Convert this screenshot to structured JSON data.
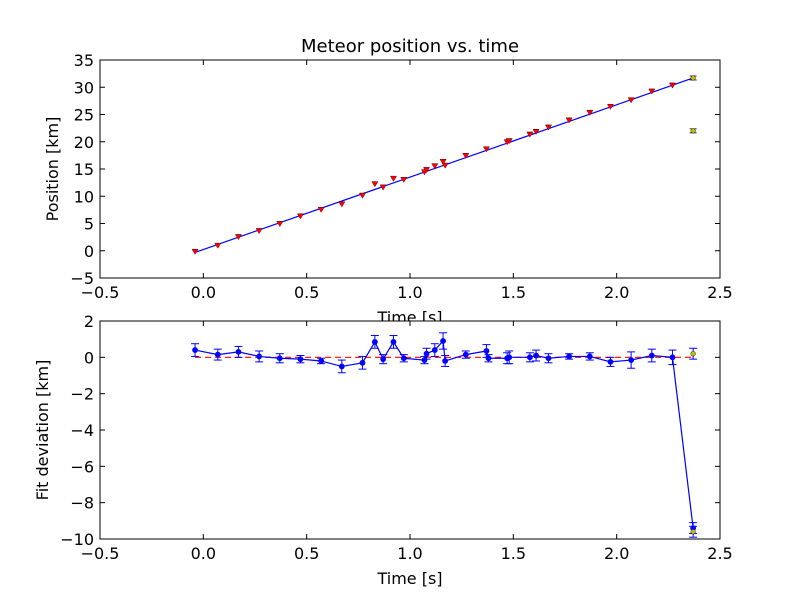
{
  "chart_data": [
    {
      "type": "scatter",
      "title": "Meteor position vs. time",
      "xlabel": "Time [s]",
      "ylabel": "Position [km]",
      "xlim": [
        -0.5,
        2.5
      ],
      "ylim": [
        -5,
        35
      ],
      "xticks": [
        "−0.5",
        "0.0",
        "0.5",
        "1.0",
        "1.5",
        "2.0",
        "2.5"
      ],
      "yticks": [
        "−5",
        "0",
        "5",
        "10",
        "15",
        "20",
        "25",
        "30",
        "35"
      ],
      "grid": false,
      "fit_line": {
        "color": "#0000ff",
        "x": [
          -0.04,
          2.37
        ],
        "y": [
          -0.3,
          31.7
        ]
      },
      "series": [
        {
          "color": "#ff0000",
          "marker": "triangle-down",
          "points": [
            [
              -0.04,
              -0.2
            ],
            [
              0.07,
              0.9
            ],
            [
              0.17,
              2.5
            ],
            [
              0.27,
              3.6
            ],
            [
              0.37,
              4.9
            ],
            [
              0.47,
              6.3
            ],
            [
              0.57,
              7.5
            ],
            [
              0.67,
              8.5
            ],
            [
              0.77,
              10.1
            ],
            [
              0.83,
              12.2
            ],
            [
              0.87,
              11.6
            ],
            [
              0.92,
              13.2
            ],
            [
              0.97,
              13.0
            ],
            [
              1.07,
              14.4
            ],
            [
              1.08,
              14.8
            ],
            [
              1.12,
              15.5
            ],
            [
              1.16,
              16.3
            ],
            [
              1.17,
              15.6
            ],
            [
              1.27,
              17.4
            ],
            [
              1.37,
              18.6
            ],
            [
              1.47,
              19.9
            ],
            [
              1.48,
              20.1
            ],
            [
              1.58,
              21.3
            ],
            [
              1.61,
              21.8
            ],
            [
              1.67,
              22.6
            ],
            [
              1.77,
              23.9
            ],
            [
              1.87,
              25.3
            ],
            [
              1.97,
              26.4
            ],
            [
              2.07,
              27.6
            ],
            [
              2.17,
              29.2
            ],
            [
              2.27,
              30.3
            ]
          ]
        },
        {
          "color": "#bfbf00",
          "marker": "circle",
          "points": [
            [
              2.37,
              31.7
            ],
            [
              2.37,
              22.0
            ]
          ]
        }
      ]
    },
    {
      "type": "line",
      "xlabel": "Time [s]",
      "ylabel": "Fit deviation [km]",
      "xlim": [
        -0.5,
        2.5
      ],
      "ylim": [
        -10,
        2
      ],
      "xticks": [
        "−0.5",
        "0.0",
        "0.5",
        "1.0",
        "1.5",
        "2.0",
        "2.5"
      ],
      "yticks": [
        "−10",
        "−8",
        "−6",
        "−4",
        "−2",
        "0",
        "2"
      ],
      "grid": false,
      "zero_line": {
        "color": "#ff0000",
        "style": "dashed",
        "x": [
          -0.04,
          2.37
        ],
        "y": 0
      },
      "series": [
        {
          "color": "#0000ff",
          "marker": "circle",
          "points": [
            [
              -0.04,
              0.4,
              0.35
            ],
            [
              0.07,
              0.15,
              0.3
            ],
            [
              0.17,
              0.3,
              0.3
            ],
            [
              0.27,
              0.05,
              0.3
            ],
            [
              0.37,
              -0.05,
              0.25
            ],
            [
              0.47,
              -0.1,
              0.2
            ],
            [
              0.57,
              -0.2,
              0.15
            ],
            [
              0.67,
              -0.5,
              0.35
            ],
            [
              0.77,
              -0.3,
              0.35
            ],
            [
              0.83,
              0.85,
              0.35
            ],
            [
              0.87,
              -0.1,
              0.25
            ],
            [
              0.92,
              0.85,
              0.35
            ],
            [
              0.97,
              -0.05,
              0.2
            ],
            [
              1.07,
              -0.15,
              0.2
            ],
            [
              1.08,
              0.2,
              0.3
            ],
            [
              1.12,
              0.4,
              0.35
            ],
            [
              1.16,
              0.9,
              0.45
            ],
            [
              1.17,
              -0.2,
              0.3
            ],
            [
              1.27,
              0.15,
              0.2
            ],
            [
              1.37,
              0.35,
              0.35
            ],
            [
              1.38,
              -0.05,
              0.2
            ],
            [
              1.47,
              -0.05,
              0.3
            ],
            [
              1.48,
              0.0,
              0.35
            ],
            [
              1.58,
              0.0,
              0.25
            ],
            [
              1.61,
              0.1,
              0.3
            ],
            [
              1.67,
              -0.05,
              0.25
            ],
            [
              1.77,
              0.05,
              0.15
            ],
            [
              1.87,
              0.05,
              0.2
            ],
            [
              1.97,
              -0.25,
              0.25
            ],
            [
              2.07,
              -0.15,
              0.45
            ],
            [
              2.17,
              0.1,
              0.35
            ],
            [
              2.27,
              0.0,
              0.4
            ],
            [
              2.37,
              -9.4,
              0.3
            ]
          ]
        },
        {
          "color": "#bfbf00",
          "marker": "circle",
          "points": [
            [
              2.37,
              0.2,
              0.3
            ],
            [
              2.37,
              -9.6,
              0.3
            ]
          ]
        }
      ]
    }
  ]
}
